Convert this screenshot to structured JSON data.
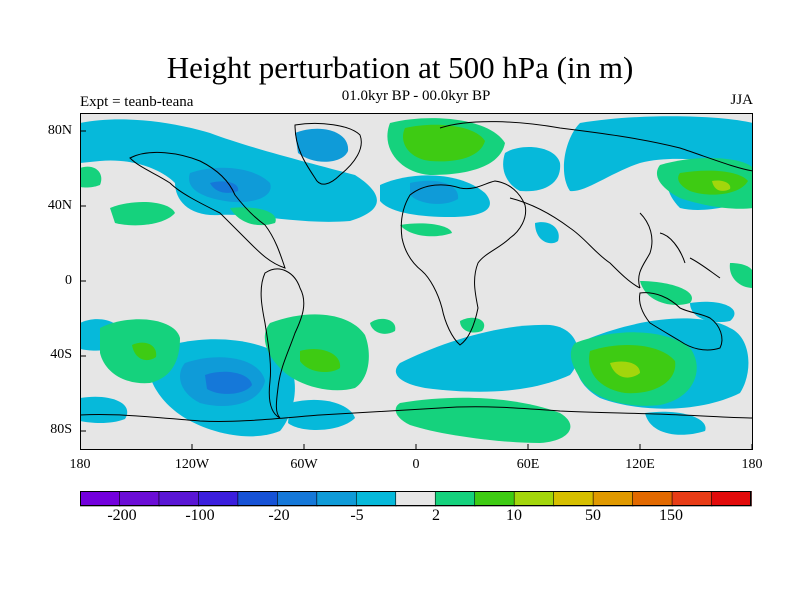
{
  "title": "Height perturbation at 500 hPa (in m)",
  "subtitle": "01.0kyr BP - 00.0kyr BP",
  "experiment_label": "Expt = teanb-teana",
  "season": "JJA",
  "map": {
    "lat_ticks": [
      "80N",
      "40N",
      "0",
      "40S",
      "80S"
    ],
    "lon_ticks": [
      "180",
      "120W",
      "60W",
      "0",
      "60E",
      "120E",
      "180"
    ],
    "background_color": "#e6e6e6"
  },
  "colorbar": {
    "colors": [
      "#7300dd",
      "#6b0dd6",
      "#5a16d4",
      "#3b1edd",
      "#1652d6",
      "#1578d9",
      "#0f9bd8",
      "#06b9da",
      "#e6e6e6",
      "#15d27d",
      "#3ecb13",
      "#a3d60c",
      "#d6bf00",
      "#e09900",
      "#e26900",
      "#e83c16",
      "#e20b0b"
    ],
    "labels": [
      "-200",
      "-100",
      "-20",
      "-5",
      "2",
      "10",
      "50",
      "150"
    ]
  },
  "chart_data": {
    "type": "heatmap",
    "title": "Height perturbation at 500 hPa (in m)",
    "subtitle": "01.0kyr BP - 00.0kyr BP",
    "variable": "500 hPa geopotential height perturbation (m)",
    "season": "JJA",
    "experiment": "teanb-teana",
    "lon_range": [
      -180,
      180
    ],
    "lat_range": [
      -90,
      90
    ],
    "color_levels": [
      -200,
      -100,
      -20,
      -5,
      2,
      10,
      50,
      150
    ],
    "features": [
      {
        "region": "North America / Greenland",
        "sign": "negative",
        "approx_level": "-5 to -20"
      },
      {
        "region": "Western Europe / North Atlantic",
        "sign": "negative",
        "approx_level": "-5"
      },
      {
        "region": "Arctic north of Europe",
        "sign": "positive",
        "approx_level": "2 to 10"
      },
      {
        "region": "East Asia / NW Pacific",
        "sign": "positive",
        "approx_level": "2 to 10"
      },
      {
        "region": "South Pacific ~50S, 120W",
        "sign": "negative",
        "approx_level": "-5 to -20"
      },
      {
        "region": "South Indian Ocean ~45S, 110E",
        "sign": "positive",
        "approx_level": "2 to 10"
      },
      {
        "region": "South Atlantic / Indian ~45S, 40E",
        "sign": "negative",
        "approx_level": "-5"
      },
      {
        "region": "Southern Ocean near Antarctica 0-60E",
        "sign": "positive",
        "approx_level": "2"
      }
    ]
  }
}
